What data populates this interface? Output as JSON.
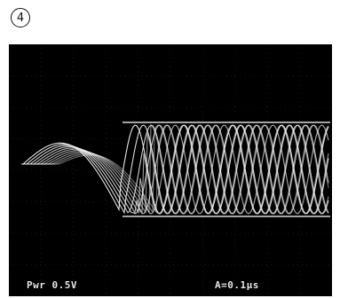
{
  "figure": {
    "panel_label": "4"
  },
  "scope": {
    "screen_color": "#000000",
    "trace_color": "#f2f2f2",
    "grid_color": "#5a5a5a",
    "ch1_readout": "Pwr 0.5V",
    "timebase_readout": "A=0.1μs"
  }
}
